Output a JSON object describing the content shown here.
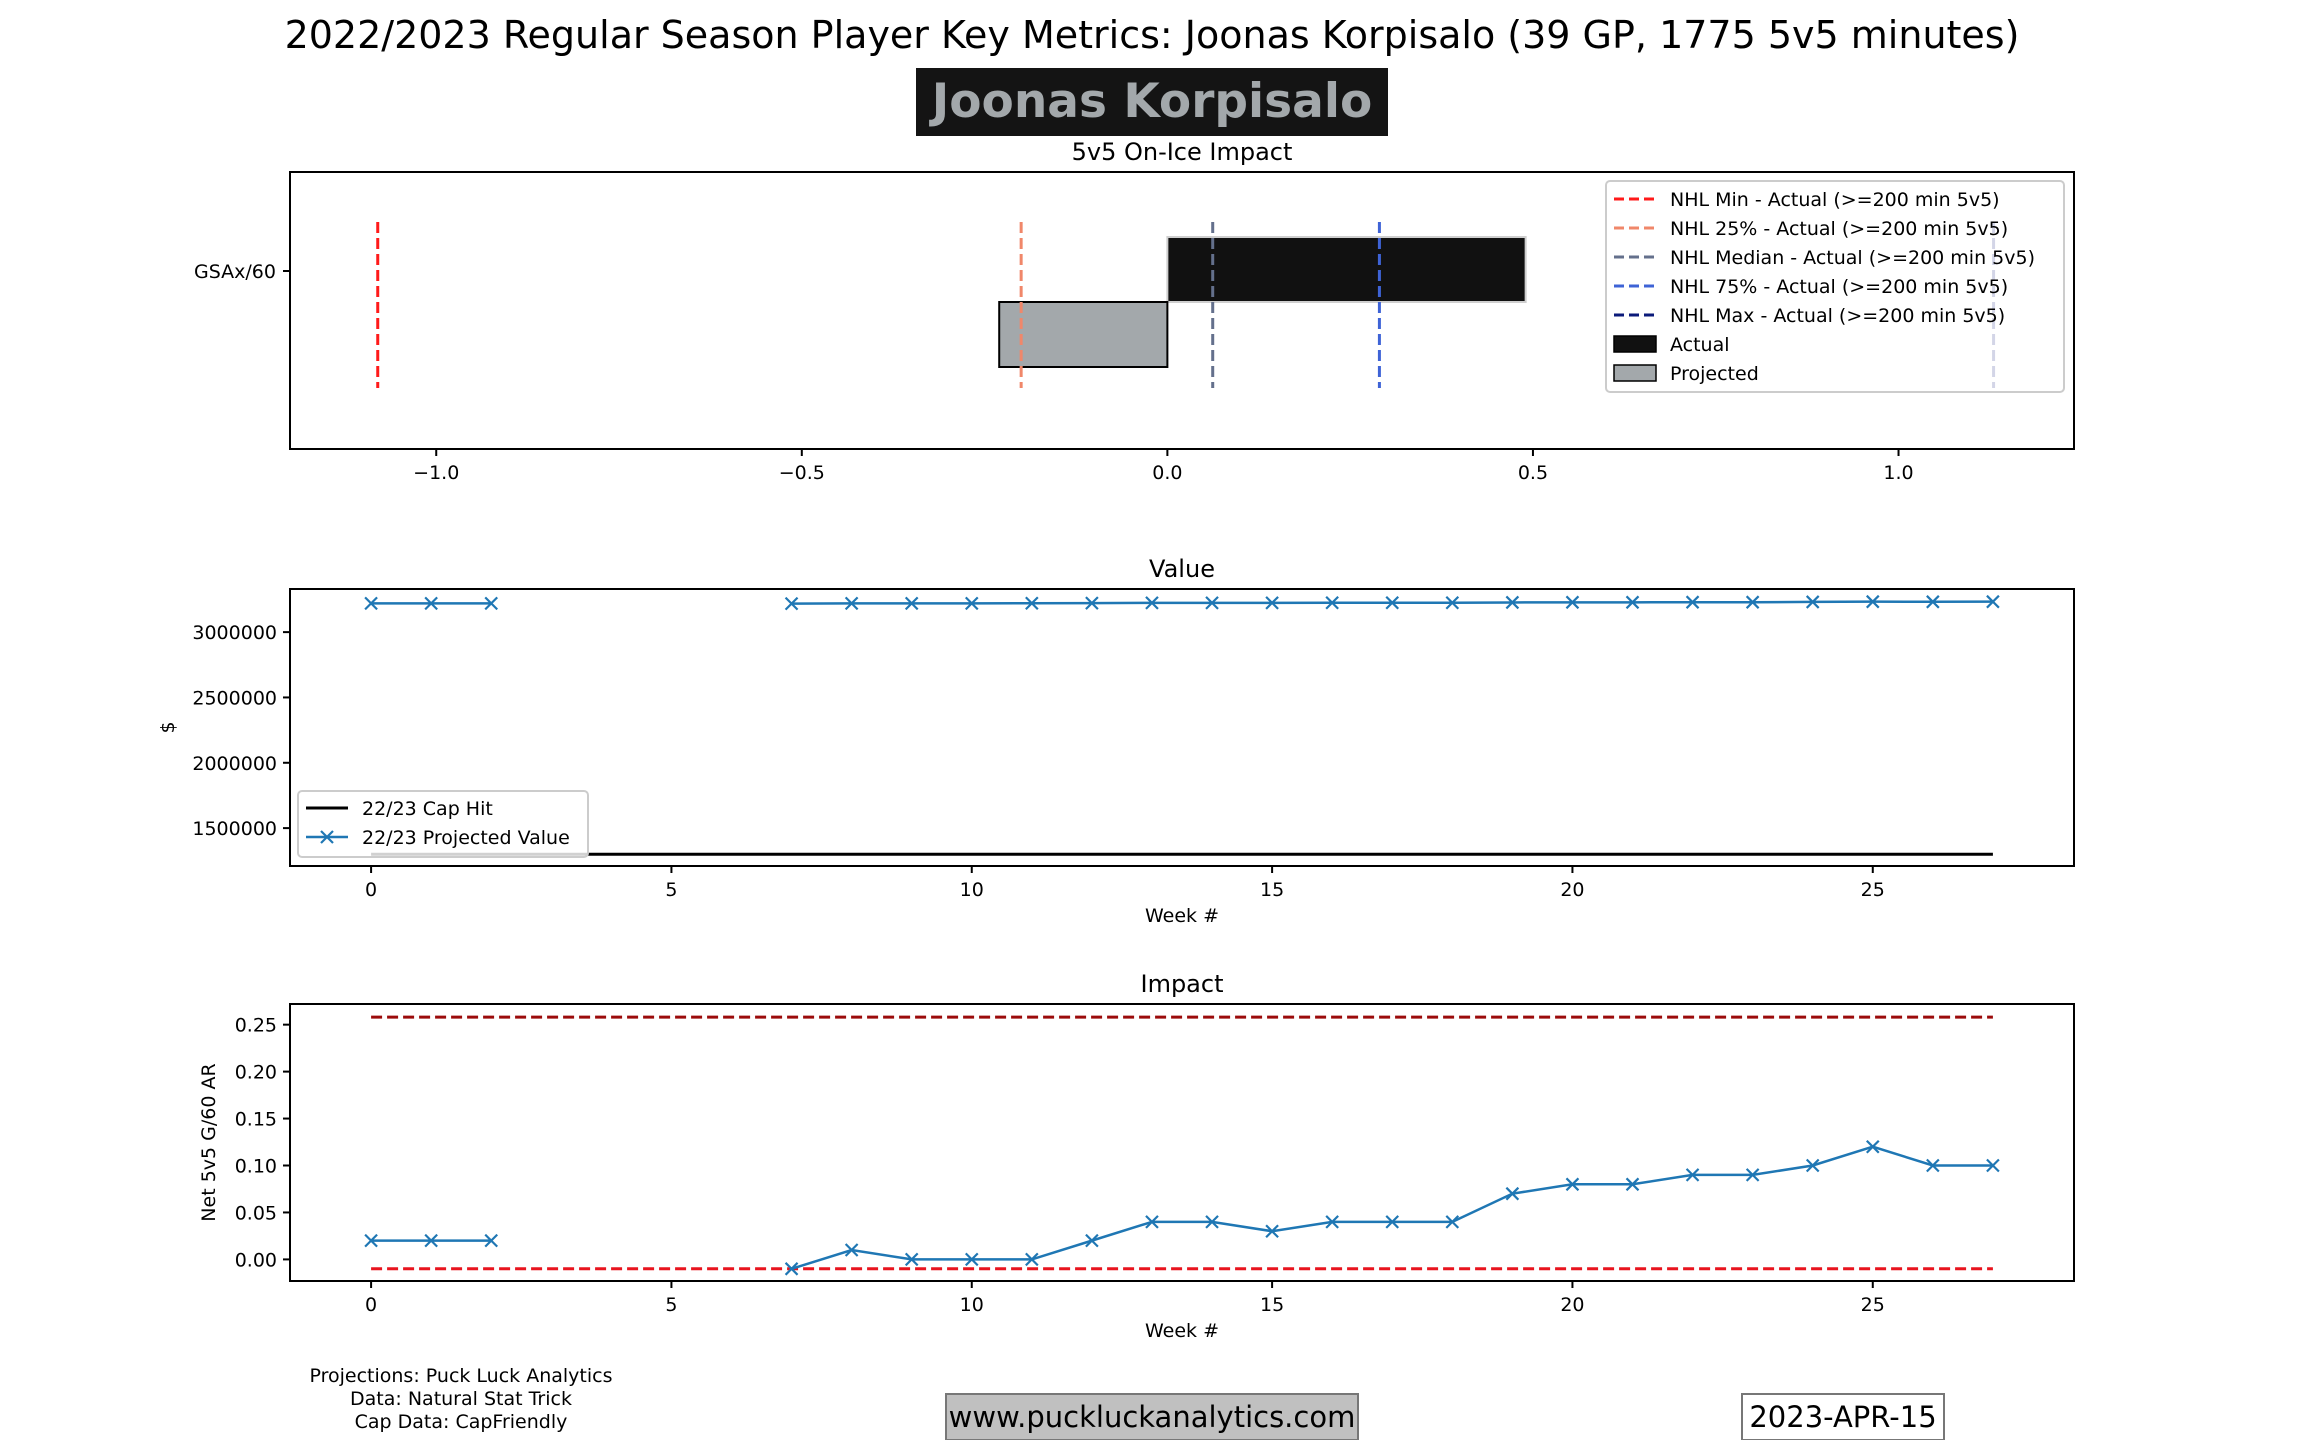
{
  "suptitle": "2022/2023 Regular Season Player Key Metrics: Joonas Korpisalo (39 GP, 1775 5v5 minutes)",
  "player_name": "Joonas Korpisalo",
  "footer": {
    "credits": [
      "Projections: Puck Luck Analytics",
      "Data: Natural Stat Trick",
      "Cap Data: CapFriendly"
    ],
    "website": "www.puckluckanalytics.com",
    "date": "2023-APR-15"
  },
  "colors": {
    "actual_bar": "#111111",
    "projected_bar": "#a3a8ab",
    "name_box_bg": "#141414",
    "name_text": "#a3a8ab",
    "projected_line": "#1f77b4",
    "cap_hit_line": "#000000",
    "min_line": "#ff1a1a",
    "p25_line": "#f0876a",
    "median_line": "#64708c",
    "p75_line": "#3e63d6",
    "max_line": "#0b1a7a",
    "impact_upper_line": "#9b0b0b",
    "impact_lower_line": "#e8141e",
    "website_box_bg": "#c0c0c0"
  },
  "chart_data": [
    {
      "type": "bar",
      "orientation": "horizontal",
      "title": "5v5 On-Ice Impact",
      "category": "GSAx/60",
      "actual": 0.49,
      "projected": -0.23,
      "xlim": [
        -1.2,
        1.24
      ],
      "xticks": [
        -1.0,
        -0.5,
        0.0,
        0.5,
        1.0
      ],
      "xtick_labels": [
        "−1.0",
        "−0.5",
        "0.0",
        "0.5",
        "1.0"
      ],
      "reference_lines": [
        {
          "name": "NHL Min - Actual (>=200 min 5v5)",
          "value": -1.08,
          "color_key": "min_line"
        },
        {
          "name": "NHL 25% - Actual (>=200 min 5v5)",
          "value": -0.2,
          "color_key": "p25_line"
        },
        {
          "name": "NHL Median - Actual (>=200 min 5v5)",
          "value": 0.062,
          "color_key": "median_line"
        },
        {
          "name": "NHL 75% - Actual (>=200 min 5v5)",
          "value": 0.29,
          "color_key": "p75_line"
        },
        {
          "name": "NHL Max - Actual (>=200 min 5v5)",
          "value": 1.13,
          "color_key": "max_line"
        }
      ],
      "legend": [
        "NHL Min - Actual (>=200 min 5v5)",
        "NHL 25% - Actual (>=200 min 5v5)",
        "NHL Median - Actual (>=200 min 5v5)",
        "NHL 75% - Actual (>=200 min 5v5)",
        "NHL Max - Actual (>=200 min 5v5)",
        "Actual",
        "Projected"
      ],
      "legend_position": "upper right"
    },
    {
      "type": "line",
      "title": "Value",
      "xlabel": "Week #",
      "ylabel": "$",
      "xlim": [
        -1.35,
        28.35
      ],
      "ylim": [
        1210000,
        3330000
      ],
      "xticks": [
        0,
        5,
        10,
        15,
        20,
        25
      ],
      "yticks": [
        1500000,
        2000000,
        2500000,
        3000000
      ],
      "series": [
        {
          "name": "22/23 Cap Hit",
          "x": [
            0,
            27
          ],
          "y": [
            1300000,
            1300000
          ],
          "color_key": "cap_hit_line"
        },
        {
          "name": "22/23 Projected Value",
          "x": [
            0,
            1,
            2,
            null,
            7,
            8,
            9,
            10,
            11,
            12,
            13,
            14,
            15,
            16,
            17,
            18,
            19,
            20,
            21,
            22,
            23,
            24,
            25,
            26,
            27
          ],
          "y": [
            3220000,
            3220000,
            3220000,
            null,
            3218000,
            3220000,
            3220000,
            3220000,
            3221000,
            3222000,
            3224000,
            3224000,
            3224000,
            3225000,
            3225000,
            3225000,
            3227000,
            3228000,
            3228000,
            3229000,
            3229000,
            3231000,
            3233000,
            3232000,
            3233000
          ],
          "marker": "x",
          "color_key": "projected_line"
        }
      ],
      "legend_position": "lower left"
    },
    {
      "type": "line",
      "title": "Impact",
      "xlabel": "Week #",
      "ylabel": "Net 5v5 G/60 AR",
      "xlim": [
        -1.35,
        28.35
      ],
      "ylim": [
        -0.023,
        0.272
      ],
      "xticks": [
        0,
        5,
        10,
        15,
        20,
        25
      ],
      "yticks": [
        0.0,
        0.05,
        0.1,
        0.15,
        0.2,
        0.25
      ],
      "ytick_labels": [
        "0.00",
        "0.05",
        "0.10",
        "0.15",
        "0.20",
        "0.25"
      ],
      "series": [
        {
          "name": "",
          "x": [
            0,
            1,
            2,
            null,
            7,
            8,
            9,
            10,
            11,
            12,
            13,
            14,
            15,
            16,
            17,
            18,
            19,
            20,
            21,
            22,
            23,
            24,
            25,
            26,
            27
          ],
          "y": [
            0.02,
            0.02,
            0.02,
            null,
            -0.01,
            0.01,
            0.0,
            0.0,
            0.0,
            0.02,
            0.04,
            0.04,
            0.03,
            0.04,
            0.04,
            0.04,
            0.07,
            0.08,
            0.08,
            0.09,
            0.09,
            0.1,
            0.12,
            0.1,
            0.1
          ],
          "marker": "x",
          "color_key": "projected_line"
        }
      ],
      "reference_lines": [
        {
          "value": 0.258,
          "x": [
            0,
            27
          ],
          "color_key": "impact_upper_line"
        },
        {
          "value": -0.01,
          "x": [
            0,
            27
          ],
          "color_key": "impact_lower_line"
        }
      ]
    }
  ]
}
